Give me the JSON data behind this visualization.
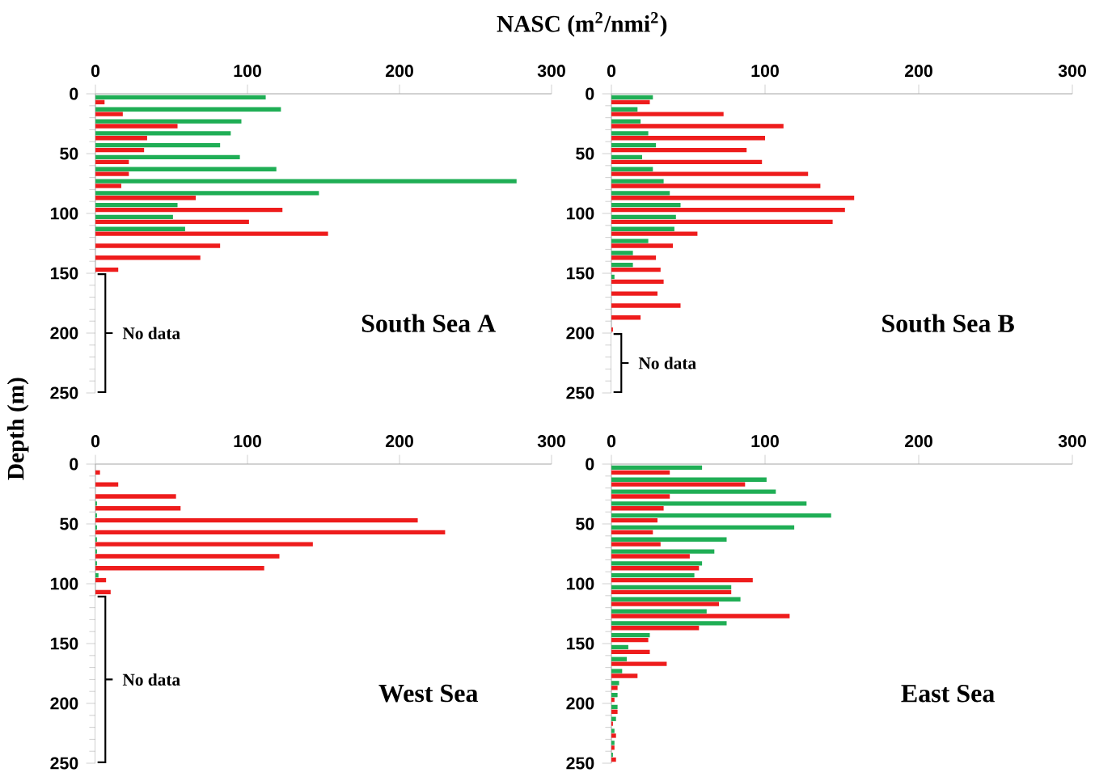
{
  "chart_data": [
    {
      "type": "bar",
      "orientation": "horizontal",
      "title": "South Sea A",
      "xlabel": "NASC (m$^{2}$/nmi$^{2}$)",
      "ylabel": "Depth (m)",
      "xlim": [
        0,
        300
      ],
      "xticks": [
        0,
        100,
        200,
        300
      ],
      "ylim": [
        250,
        0
      ],
      "yticks": [
        0,
        50,
        100,
        150,
        200,
        250
      ],
      "series": [
        {
          "color": "#1fae55",
          "x": [
            3,
            13,
            23,
            33,
            43,
            53,
            63,
            73,
            83,
            93,
            103,
            113
          ],
          "values": [
            112,
            122,
            96,
            89,
            82,
            95,
            119,
            277,
            147,
            54,
            51,
            59
          ]
        },
        {
          "color": "#ee1c1c",
          "x": [
            7,
            17,
            27,
            37,
            47,
            57,
            67,
            77,
            87,
            97,
            107,
            117,
            127,
            137,
            147
          ],
          "values": [
            6,
            18,
            54,
            34,
            32,
            22,
            22,
            17,
            66,
            123,
            101,
            153,
            82,
            69,
            15
          ]
        }
      ],
      "bands": [
        {
          "axis": "y",
          "from": 150,
          "to": 250,
          "label": "No data"
        }
      ]
    },
    {
      "type": "bar",
      "orientation": "horizontal",
      "title": "South Sea B",
      "xlim": [
        0,
        300
      ],
      "xticks": [
        0,
        100,
        200,
        300
      ],
      "ylim": [
        250,
        0
      ],
      "yticks": [
        0,
        50,
        100,
        150,
        200,
        250
      ],
      "series": [
        {
          "color": "#1fae55",
          "x": [
            3,
            13,
            23,
            33,
            43,
            53,
            63,
            73,
            83,
            93,
            103,
            113,
            123,
            133,
            143,
            153
          ],
          "values": [
            27,
            17,
            19,
            24,
            29,
            20,
            27,
            34,
            38,
            45,
            42,
            41,
            24,
            14,
            14,
            2
          ]
        },
        {
          "color": "#ee1c1c",
          "x": [
            7,
            17,
            27,
            37,
            47,
            57,
            67,
            77,
            87,
            97,
            107,
            117,
            127,
            137,
            147,
            157,
            167,
            177,
            187,
            197
          ],
          "values": [
            25,
            73,
            112,
            100,
            88,
            98,
            128,
            136,
            158,
            152,
            144,
            56,
            40,
            29,
            32,
            34,
            30,
            45,
            19,
            1
          ]
        }
      ],
      "bands": [
        {
          "axis": "y",
          "from": 200,
          "to": 250,
          "label": "No data"
        }
      ]
    },
    {
      "type": "bar",
      "orientation": "horizontal",
      "title": "West Sea",
      "xlim": [
        0,
        300
      ],
      "xticks": [
        0,
        100,
        200,
        300
      ],
      "ylim": [
        250,
        0
      ],
      "yticks": [
        0,
        50,
        100,
        150,
        200,
        250
      ],
      "series": [
        {
          "color": "#1fae55",
          "x": [
            33,
            43,
            53,
            63,
            73,
            83,
            93
          ],
          "values": [
            1,
            1,
            1,
            1,
            1,
            1,
            2
          ]
        },
        {
          "color": "#ee1c1c",
          "x": [
            7,
            17,
            27,
            37,
            47,
            57,
            67,
            77,
            87,
            97,
            107
          ],
          "values": [
            3,
            15,
            53,
            56,
            212,
            230,
            143,
            121,
            111,
            7,
            10
          ]
        }
      ],
      "bands": [
        {
          "axis": "y",
          "from": 110,
          "to": 250,
          "label": "No data"
        }
      ]
    },
    {
      "type": "bar",
      "orientation": "horizontal",
      "title": "East Sea",
      "xlim": [
        0,
        300
      ],
      "xticks": [
        0,
        100,
        200,
        300
      ],
      "ylim": [
        250,
        0
      ],
      "yticks": [
        0,
        50,
        100,
        150,
        200,
        250
      ],
      "series": [
        {
          "color": "#1fae55",
          "x": [
            3,
            13,
            23,
            33,
            43,
            53,
            63,
            73,
            83,
            93,
            103,
            113,
            123,
            133,
            143,
            153,
            163,
            173,
            183,
            193,
            203,
            213,
            223,
            233,
            243
          ],
          "values": [
            59,
            101,
            107,
            127,
            143,
            119,
            75,
            67,
            59,
            54,
            78,
            84,
            62,
            75,
            25,
            11,
            10,
            7,
            5,
            4,
            4,
            3,
            2,
            2,
            1
          ]
        },
        {
          "color": "#ee1c1c",
          "x": [
            7,
            17,
            27,
            37,
            47,
            57,
            67,
            77,
            87,
            97,
            107,
            117,
            127,
            137,
            147,
            157,
            167,
            177,
            187,
            197,
            207,
            217,
            227,
            237,
            247
          ],
          "values": [
            38,
            87,
            38,
            34,
            30,
            27,
            32,
            51,
            57,
            92,
            78,
            70,
            116,
            57,
            24,
            25,
            36,
            17,
            4,
            2,
            4,
            1,
            3,
            2,
            3
          ]
        }
      ]
    }
  ]
}
